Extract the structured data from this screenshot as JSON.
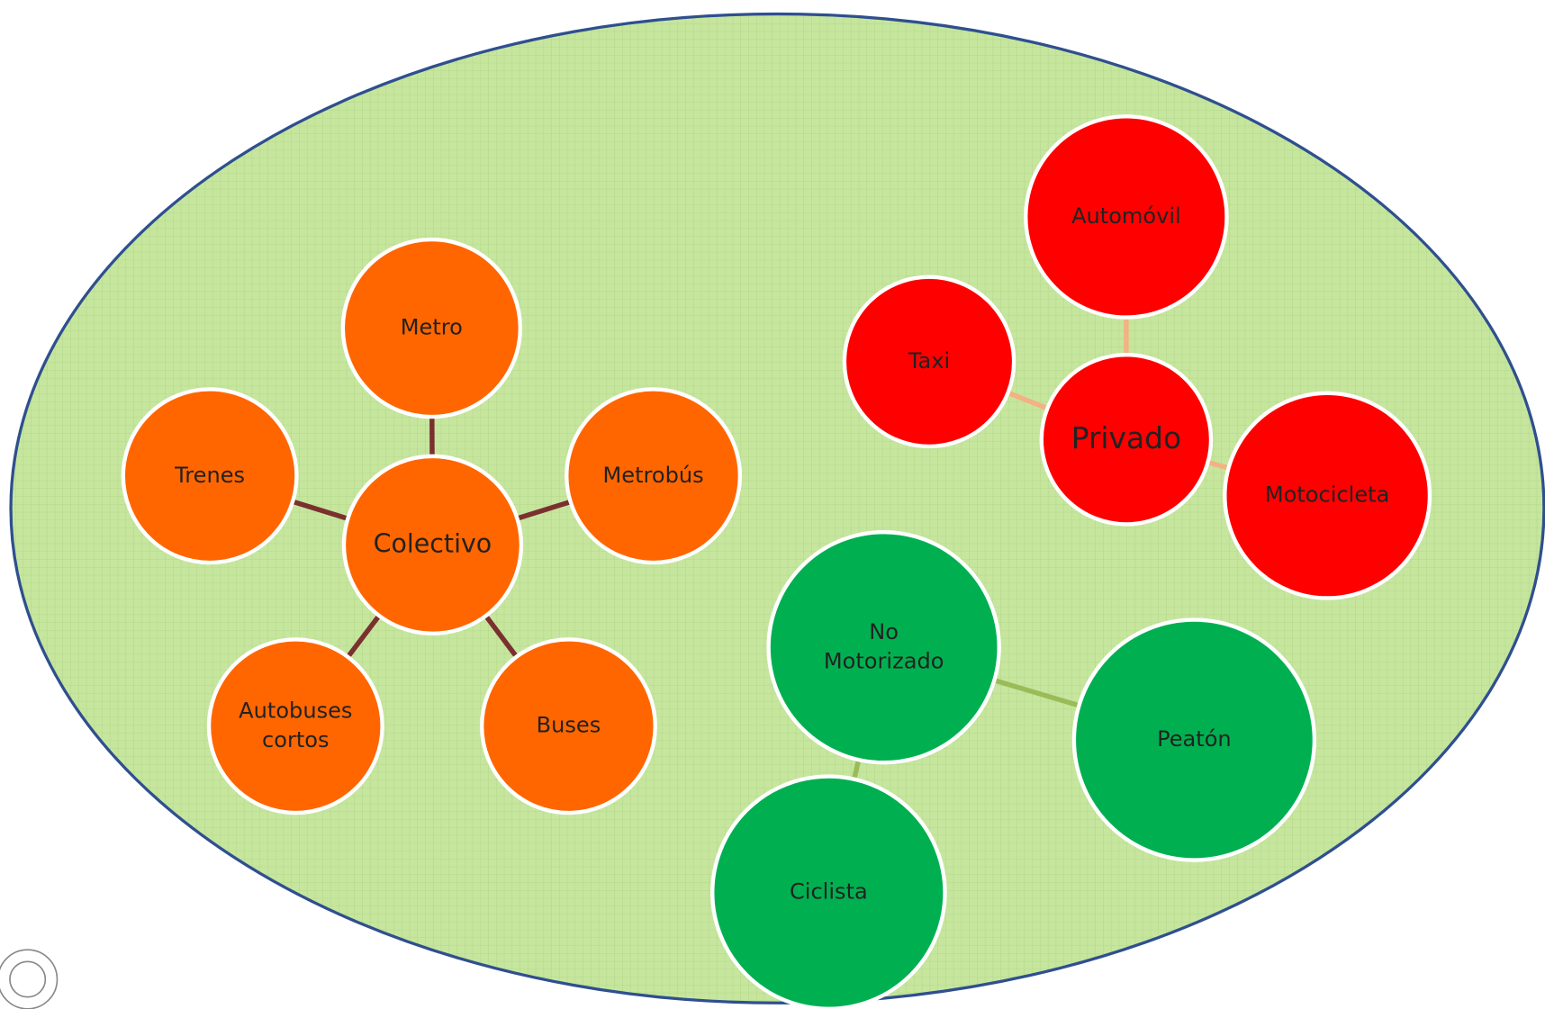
{
  "groups": [
    {
      "hub": {
        "lines": [
          "Colectivo"
        ]
      },
      "nodes": [
        {
          "lines": [
            "Metro"
          ]
        },
        {
          "lines": [
            "Trenes"
          ]
        },
        {
          "lines": [
            "Metrobús"
          ]
        },
        {
          "lines": [
            "Autobuses",
            "cortos"
          ]
        },
        {
          "lines": [
            "Buses"
          ]
        }
      ]
    },
    {
      "hub": {
        "lines": [
          "Privado"
        ]
      },
      "nodes": [
        {
          "lines": [
            "Automóvil"
          ]
        },
        {
          "lines": [
            "Taxi"
          ]
        },
        {
          "lines": [
            "Motocicleta"
          ]
        }
      ]
    },
    {
      "hub": {
        "lines": [
          "No",
          "Motorizado"
        ]
      },
      "nodes": [
        {
          "lines": [
            "Peatón"
          ]
        },
        {
          "lines": [
            "Ciclista"
          ]
        }
      ]
    }
  ]
}
